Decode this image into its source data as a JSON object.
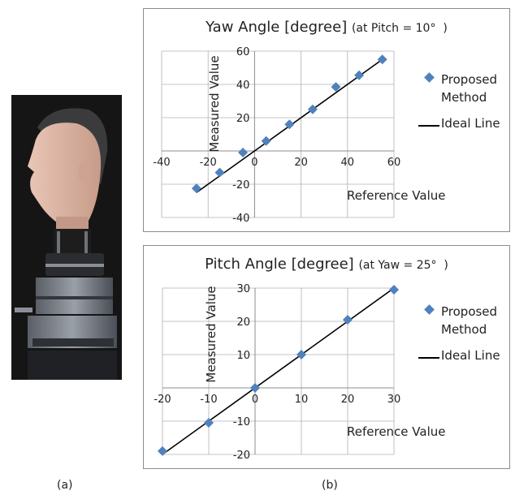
{
  "captions": {
    "a": "(a)",
    "b": "(b)"
  },
  "photo": {
    "icon": "mannequin-head-on-motorized-stage"
  },
  "colors": {
    "marker": "#4f81bd",
    "line": "#000000",
    "axis": "#8c8c8c",
    "grid": "#b0b0b0"
  },
  "chart_data": [
    {
      "type": "scatter",
      "title": "Yaw Angle [degree]",
      "subtitle": "(at Pitch = 10°  )",
      "xlabel": "Reference Value",
      "ylabel": "Measured Value",
      "xlim": [
        -40,
        60
      ],
      "ylim": [
        -40,
        60
      ],
      "xticks": [
        -40,
        -20,
        0,
        20,
        40,
        60
      ],
      "yticks": [
        -40,
        -20,
        20,
        40,
        60
      ],
      "grid": "vertical and horizontal at tick values",
      "legend_position": "right",
      "series": [
        {
          "name": "Proposed Method",
          "x": [
            -25,
            -15,
            -5,
            5,
            15,
            25,
            35,
            45,
            55
          ],
          "y": [
            -22.5,
            -13,
            -1,
            6,
            16,
            25,
            38.5,
            45.5,
            55
          ]
        },
        {
          "name": "Ideal Line",
          "x": [
            -25,
            55
          ],
          "y": [
            -25,
            55
          ]
        }
      ]
    },
    {
      "type": "scatter",
      "title": "Pitch Angle [degree]",
      "subtitle": "(at Yaw = 25°  )",
      "xlabel": "Reference Value",
      "ylabel": "Measured Value",
      "xlim": [
        -20,
        30
      ],
      "ylim": [
        -20,
        30
      ],
      "xticks": [
        -20,
        -10,
        0,
        10,
        20,
        30
      ],
      "yticks": [
        -20,
        -10,
        10,
        20,
        30
      ],
      "grid": "vertical and horizontal at tick values",
      "legend_position": "right",
      "series": [
        {
          "name": "Proposed Method",
          "x": [
            -20,
            -10,
            0,
            10,
            20,
            30
          ],
          "y": [
            -19,
            -10.5,
            0,
            10,
            20.5,
            29.5
          ]
        },
        {
          "name": "Ideal Line",
          "x": [
            -20,
            30
          ],
          "y": [
            -20,
            30
          ]
        }
      ]
    }
  ]
}
